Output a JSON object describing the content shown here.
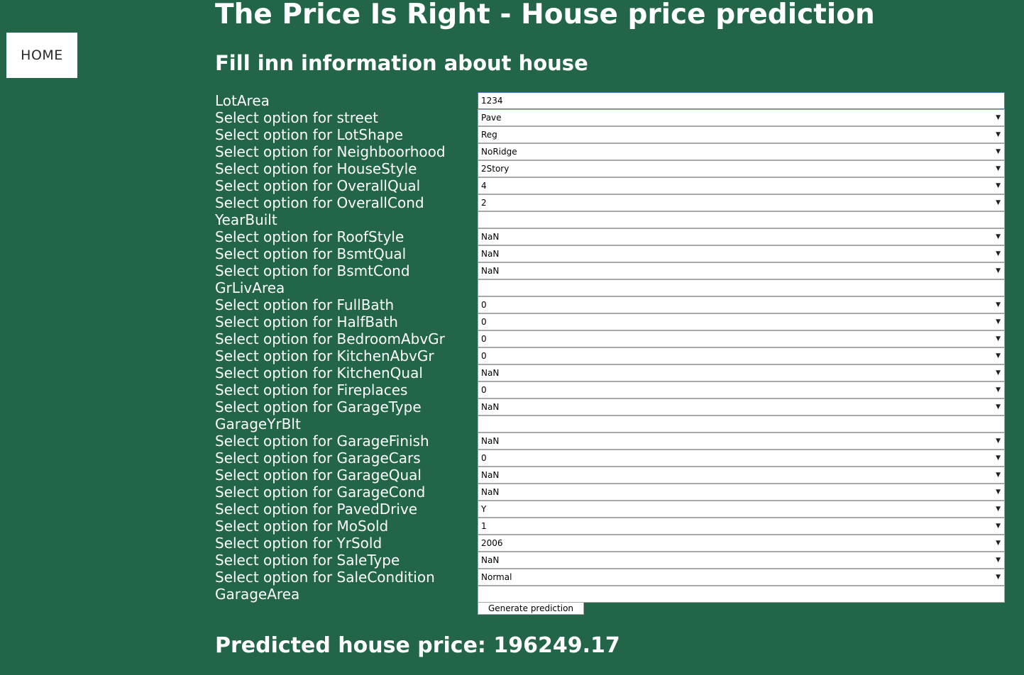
{
  "nav": {
    "home_label": "HOME"
  },
  "header": {
    "title": "The Price Is Right - House price prediction",
    "subtitle": "Fill inn information about house"
  },
  "form": {
    "fields": [
      {
        "label": "LotArea",
        "type": "input",
        "value": "1234",
        "name": "lotarea"
      },
      {
        "label": "Select option for street",
        "type": "select",
        "value": "Pave",
        "name": "street"
      },
      {
        "label": "Select option for LotShape",
        "type": "select",
        "value": "Reg",
        "name": "lotshape"
      },
      {
        "label": "Select option for Neighboorhood",
        "type": "select",
        "value": "NoRidge",
        "name": "neighborhood"
      },
      {
        "label": "Select option for HouseStyle",
        "type": "select",
        "value": "2Story",
        "name": "housestyle"
      },
      {
        "label": "Select option for OverallQual",
        "type": "select",
        "value": "4",
        "name": "overallqual"
      },
      {
        "label": "Select option for OverallCond",
        "type": "select",
        "value": "2",
        "name": "overallcond"
      },
      {
        "label": "YearBuilt",
        "type": "input",
        "value": "",
        "name": "yearbuilt"
      },
      {
        "label": "Select option for RoofStyle",
        "type": "select",
        "value": "NaN",
        "name": "roofstyle"
      },
      {
        "label": "Select option for BsmtQual",
        "type": "select",
        "value": "NaN",
        "name": "bsmtqual"
      },
      {
        "label": "Select option for BsmtCond",
        "type": "select",
        "value": "NaN",
        "name": "bsmtcond"
      },
      {
        "label": "GrLivArea",
        "type": "input",
        "value": "",
        "name": "grlivarea"
      },
      {
        "label": "Select option for FullBath",
        "type": "select",
        "value": "0",
        "name": "fullbath"
      },
      {
        "label": "Select option for HalfBath",
        "type": "select",
        "value": "0",
        "name": "halfbath"
      },
      {
        "label": "Select option for BedroomAbvGr",
        "type": "select",
        "value": "0",
        "name": "bedroomabvgr"
      },
      {
        "label": "Select option for KitchenAbvGr",
        "type": "select",
        "value": "0",
        "name": "kitchenabvgr"
      },
      {
        "label": "Select option for KitchenQual",
        "type": "select",
        "value": "NaN",
        "name": "kitchenqual"
      },
      {
        "label": "Select option for Fireplaces",
        "type": "select",
        "value": "0",
        "name": "fireplaces"
      },
      {
        "label": "Select option for GarageType",
        "type": "select",
        "value": "NaN",
        "name": "garagetype"
      },
      {
        "label": "GarageYrBlt",
        "type": "input",
        "value": "",
        "name": "garageyrblt"
      },
      {
        "label": "Select option for GarageFinish",
        "type": "select",
        "value": "NaN",
        "name": "garagefinish"
      },
      {
        "label": "Select option for GarageCars",
        "type": "select",
        "value": "0",
        "name": "garagecars"
      },
      {
        "label": "Select option for GarageQual",
        "type": "select",
        "value": "NaN",
        "name": "garagequal"
      },
      {
        "label": "Select option for GarageCond",
        "type": "select",
        "value": "NaN",
        "name": "garagecond"
      },
      {
        "label": "Select option for PavedDrive",
        "type": "select",
        "value": "Y",
        "name": "paveddrive"
      },
      {
        "label": "Select option for MoSold",
        "type": "select",
        "value": "1",
        "name": "mosold"
      },
      {
        "label": "Select option for YrSold",
        "type": "select",
        "value": "2006",
        "name": "yrsold"
      },
      {
        "label": "Select option for SaleType",
        "type": "select",
        "value": "NaN",
        "name": "saletype"
      },
      {
        "label": "Select option for SaleCondition",
        "type": "select",
        "value": "Normal",
        "name": "salecondition"
      },
      {
        "label": "GarageArea",
        "type": "input",
        "value": "",
        "name": "garagearea"
      }
    ],
    "submit_label": "Generate prediction"
  },
  "result": {
    "text": "Predicted house price: 196249.17"
  },
  "icons": {
    "dropdown_arrow": "▼"
  }
}
